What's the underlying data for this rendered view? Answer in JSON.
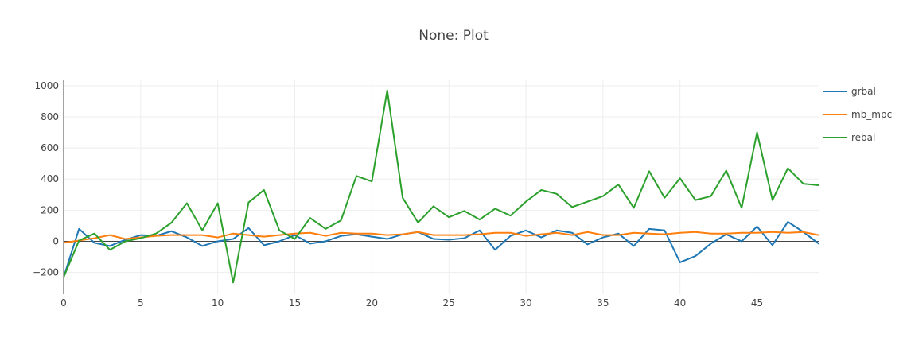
{
  "chart_data": {
    "type": "line",
    "title": "None: Plot",
    "xlabel": "",
    "ylabel": "",
    "xlim": [
      0,
      49
    ],
    "ylim": [
      -340,
      1040
    ],
    "x_ticks": [
      0,
      5,
      10,
      15,
      20,
      25,
      30,
      35,
      40,
      45
    ],
    "y_ticks": [
      -200,
      0,
      200,
      400,
      600,
      800,
      1000
    ],
    "y_tick_labels": [
      "−200",
      "0",
      "200",
      "400",
      "600",
      "800",
      "1000"
    ],
    "grid": true,
    "legend_position": "top-right",
    "x": [
      0,
      1,
      2,
      3,
      4,
      5,
      6,
      7,
      8,
      9,
      10,
      11,
      12,
      13,
      14,
      15,
      16,
      17,
      18,
      19,
      20,
      21,
      22,
      23,
      24,
      25,
      26,
      27,
      28,
      29,
      30,
      31,
      32,
      33,
      34,
      35,
      36,
      37,
      38,
      39,
      40,
      41,
      42,
      43,
      44,
      45,
      46,
      47,
      48,
      49
    ],
    "series": [
      {
        "name": "grbal",
        "color": "#1f77b4",
        "values": [
          -230,
          80,
          -10,
          -30,
          10,
          40,
          35,
          65,
          25,
          -30,
          0,
          15,
          85,
          -25,
          0,
          40,
          -15,
          0,
          35,
          45,
          30,
          15,
          45,
          60,
          15,
          10,
          20,
          70,
          -55,
          35,
          70,
          25,
          70,
          55,
          -20,
          25,
          50,
          -30,
          80,
          70,
          -135,
          -95,
          -15,
          45,
          0,
          95,
          -25,
          125,
          60,
          -15
        ]
      },
      {
        "name": "mb_mpc",
        "color": "#ff7f0e",
        "values": [
          -10,
          5,
          20,
          40,
          15,
          25,
          35,
          40,
          40,
          40,
          25,
          50,
          40,
          30,
          40,
          50,
          55,
          35,
          55,
          50,
          50,
          40,
          45,
          60,
          40,
          40,
          40,
          45,
          55,
          55,
          35,
          45,
          55,
          40,
          60,
          40,
          40,
          55,
          50,
          45,
          55,
          60,
          50,
          50,
          55,
          55,
          60,
          55,
          60,
          40
        ]
      },
      {
        "name": "rebal",
        "color": "#2ca02c",
        "values": [
          -230,
          5,
          50,
          -55,
          0,
          20,
          50,
          120,
          245,
          70,
          245,
          -265,
          250,
          330,
          70,
          15,
          150,
          80,
          135,
          420,
          385,
          970,
          280,
          120,
          225,
          155,
          195,
          140,
          210,
          165,
          255,
          330,
          305,
          220,
          255,
          290,
          365,
          215,
          450,
          280,
          405,
          265,
          290,
          455,
          215,
          700,
          265,
          470,
          370,
          360
        ]
      }
    ]
  }
}
